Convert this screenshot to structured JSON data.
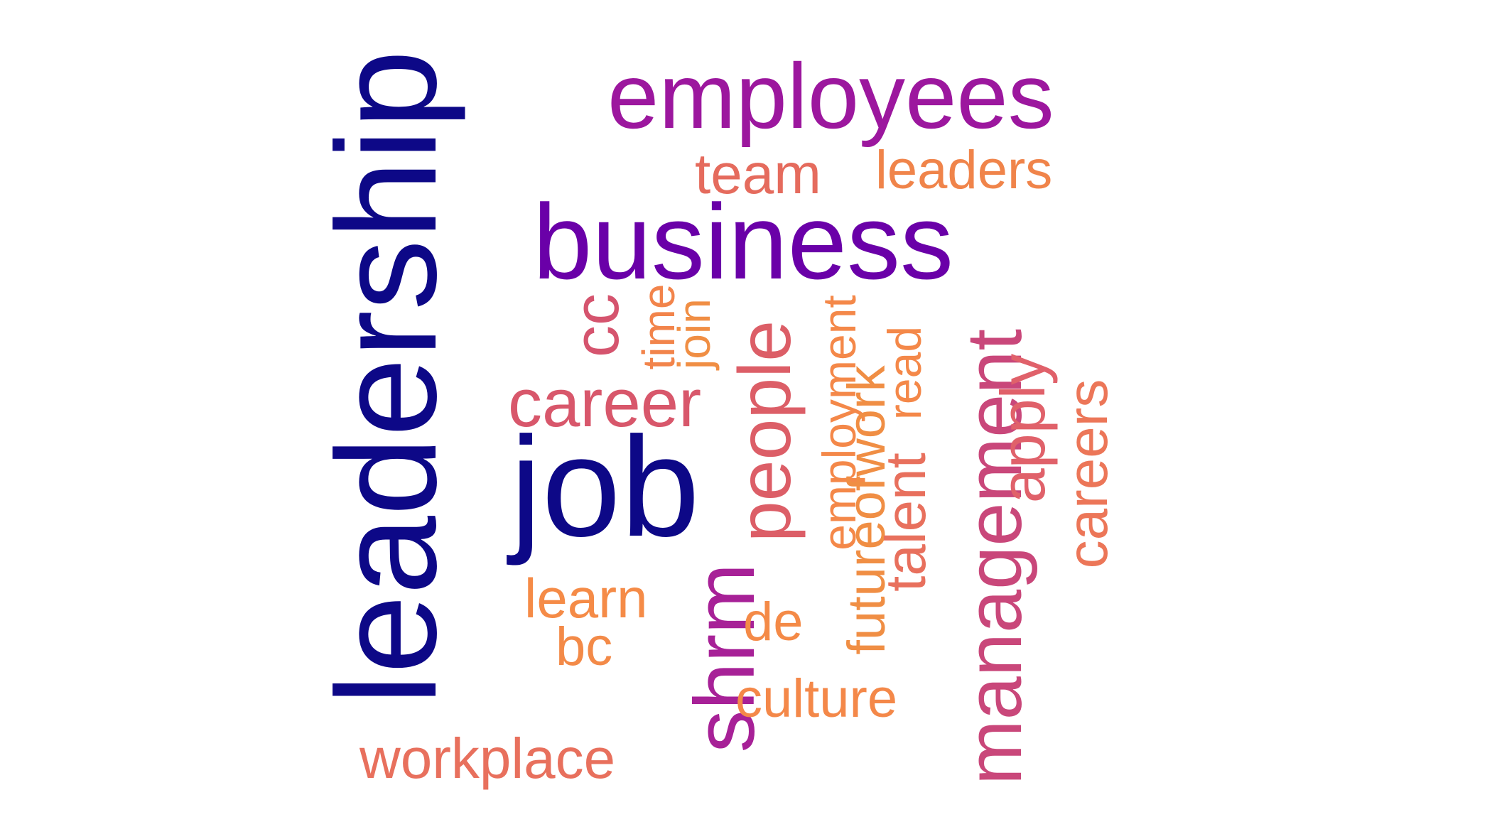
{
  "words": [
    {
      "key": "leadership",
      "text": "leadership",
      "color": "#0d0887"
    },
    {
      "key": "employees",
      "text": "employees",
      "color": "#9c179e"
    },
    {
      "key": "team",
      "text": "team",
      "color": "#e56b5d"
    },
    {
      "key": "leaders",
      "text": "leaders",
      "color": "#f0844a"
    },
    {
      "key": "business",
      "text": "business",
      "color": "#6a00a8"
    },
    {
      "key": "cc",
      "text": "cc",
      "color": "#d5546e"
    },
    {
      "key": "time",
      "text": "time",
      "color": "#f2844b"
    },
    {
      "key": "join",
      "text": "join",
      "color": "#f08e44"
    },
    {
      "key": "career",
      "text": "career",
      "color": "#d8576b"
    },
    {
      "key": "people",
      "text": "people",
      "color": "#dc5e67"
    },
    {
      "key": "employment",
      "text": "employment",
      "color": "#f48849"
    },
    {
      "key": "futureofwork",
      "text": "futureofwork",
      "color": "#f08e44"
    },
    {
      "key": "read",
      "text": "read",
      "color": "#f48849"
    },
    {
      "key": "management",
      "text": "management",
      "color": "#c9477a"
    },
    {
      "key": "apply",
      "text": "apply",
      "color": "#e0616a"
    },
    {
      "key": "careers",
      "text": "careers",
      "color": "#ec7658"
    },
    {
      "key": "job",
      "text": "job",
      "color": "#0d0887"
    },
    {
      "key": "talent",
      "text": "talent",
      "color": "#e8705d"
    },
    {
      "key": "shrm",
      "text": "shrm",
      "color": "#a72197"
    },
    {
      "key": "learn",
      "text": "learn",
      "color": "#f58b47"
    },
    {
      "key": "de",
      "text": "de",
      "color": "#f48a47"
    },
    {
      "key": "bc",
      "text": "bc",
      "color": "#f38a48"
    },
    {
      "key": "culture",
      "text": "culture",
      "color": "#f48849"
    },
    {
      "key": "workplace",
      "text": "workplace",
      "color": "#e8705d"
    }
  ]
}
